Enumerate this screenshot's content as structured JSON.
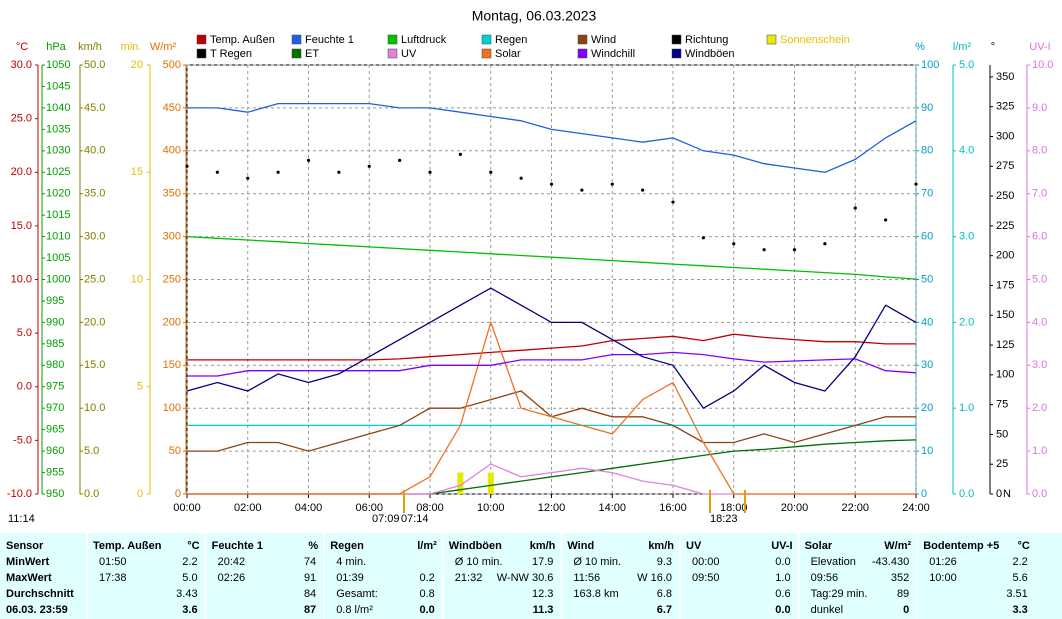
{
  "chart_data": {
    "type": "line",
    "title": "Montag, 06.03.2023",
    "x": [
      0,
      1,
      2,
      3,
      4,
      5,
      6,
      7,
      8,
      9,
      10,
      11,
      12,
      13,
      14,
      15,
      16,
      17,
      18,
      19,
      20,
      21,
      22,
      23,
      24
    ],
    "xlim": [
      0,
      24
    ],
    "xticks": [
      {
        "value": 0,
        "label": "00:00"
      },
      {
        "value": 2,
        "label": "02:00"
      },
      {
        "value": 4,
        "label": "04:00"
      },
      {
        "value": 6,
        "label": "06:00"
      },
      {
        "value": 8,
        "label": "08:00"
      },
      {
        "value": 10,
        "label": "10:00"
      },
      {
        "value": 12,
        "label": "12:00"
      },
      {
        "value": 14,
        "label": "14:00"
      },
      {
        "value": 16,
        "label": "16:00"
      },
      {
        "value": 18,
        "label": "18:00"
      },
      {
        "value": 20,
        "label": "20:00"
      },
      {
        "value": 22,
        "label": "22:00"
      },
      {
        "value": 24,
        "label": "24:00"
      }
    ],
    "grid": true,
    "axes": [
      {
        "unit": "°C",
        "color": "#c00000",
        "lim": [
          -10,
          30
        ],
        "ticks": [
          {
            "value": -10,
            "label": "-10.0"
          },
          {
            "value": -5,
            "label": "-5.0"
          },
          {
            "value": 0,
            "label": "0.0"
          },
          {
            "value": 5,
            "label": "5.0"
          },
          {
            "value": 10,
            "label": "10.0"
          },
          {
            "value": 15,
            "label": "15.0"
          },
          {
            "value": 20,
            "label": "20.0"
          },
          {
            "value": 25,
            "label": "25.0"
          },
          {
            "value": 30,
            "label": "30.0"
          }
        ]
      },
      {
        "unit": "hPa",
        "color": "#00a000",
        "lim": [
          950,
          1050
        ],
        "ticks": [
          950,
          955,
          960,
          965,
          970,
          975,
          980,
          985,
          990,
          995,
          1000,
          1005,
          1010,
          1015,
          1020,
          1025,
          1030,
          1035,
          1040,
          1045,
          1050
        ]
      },
      {
        "unit": "km/h",
        "color": "#808000",
        "lim": [
          0,
          50
        ],
        "ticks": [
          {
            "value": 0,
            "label": "0.0"
          },
          {
            "value": 5,
            "label": "5.0"
          },
          {
            "value": 10,
            "label": "10.0"
          },
          {
            "value": 15,
            "label": "15.0"
          },
          {
            "value": 20,
            "label": "20.0"
          },
          {
            "value": 25,
            "label": "25.0"
          },
          {
            "value": 30,
            "label": "30.0"
          },
          {
            "value": 35,
            "label": "35.0"
          },
          {
            "value": 40,
            "label": "40.0"
          },
          {
            "value": 45,
            "label": "45.0"
          },
          {
            "value": 50,
            "label": "50.0"
          }
        ]
      },
      {
        "unit": "min.",
        "color": "#e0c000",
        "lim": [
          0,
          20
        ],
        "ticks": [
          0,
          5,
          10,
          15,
          20
        ]
      },
      {
        "unit": "W/m²",
        "color": "#e07000",
        "lim": [
          0,
          500
        ],
        "ticks": [
          0,
          50,
          100,
          150,
          200,
          250,
          300,
          350,
          400,
          450,
          500
        ]
      },
      {
        "unit": "%",
        "color": "#00a0c0",
        "lim": [
          0,
          100
        ],
        "ticks": [
          0,
          10,
          20,
          30,
          40,
          50,
          60,
          70,
          80,
          90,
          100
        ]
      },
      {
        "unit": "l/m²",
        "color": "#00c0c0",
        "lim": [
          0,
          5
        ],
        "ticks": [
          {
            "value": 0,
            "label": "0.0"
          },
          {
            "value": 1,
            "label": "1.0"
          },
          {
            "value": 2,
            "label": "2.0"
          },
          {
            "value": 3,
            "label": "3.0"
          },
          {
            "value": 4,
            "label": "4.0"
          },
          {
            "value": 5,
            "label": "5.0"
          }
        ]
      },
      {
        "unit": "°",
        "color": "#000000",
        "lim": [
          0,
          360
        ],
        "ticks": [
          0,
          25,
          50,
          75,
          100,
          125,
          150,
          175,
          200,
          225,
          250,
          275,
          300,
          325,
          350
        ]
      },
      {
        "unit": "UV-I",
        "color": "#e070e0",
        "lim": [
          0,
          10
        ],
        "ticks": [
          {
            "value": 0,
            "label": "0.0"
          },
          {
            "value": 1,
            "label": "1.0"
          },
          {
            "value": 2,
            "label": "2.0"
          },
          {
            "value": 3,
            "label": "3.0"
          },
          {
            "value": 4,
            "label": "4.0"
          },
          {
            "value": 5,
            "label": "5.0"
          },
          {
            "value": 6,
            "label": "6.0"
          },
          {
            "value": 7,
            "label": "7.0"
          },
          {
            "value": 8,
            "label": "8.0"
          },
          {
            "value": 9,
            "label": "9.0"
          },
          {
            "value": 10,
            "label": "10.0"
          }
        ]
      }
    ],
    "series": [
      {
        "name": "Temp. Außen",
        "color": "#c00000",
        "axis": 0,
        "mode": "line",
        "values": [
          2.5,
          2.5,
          2.5,
          2.5,
          2.5,
          2.5,
          2.5,
          2.6,
          2.8,
          3.0,
          3.2,
          3.4,
          3.6,
          3.8,
          4.3,
          4.5,
          4.7,
          4.3,
          4.9,
          4.6,
          4.4,
          4.2,
          4.2,
          4.0,
          4.0
        ]
      },
      {
        "name": "Feuchte 1",
        "color": "#2060e0",
        "axis": 5,
        "mode": "line",
        "values": [
          90,
          90,
          89,
          91,
          91,
          91,
          91,
          90,
          90,
          89,
          88,
          87,
          85,
          84,
          83,
          82,
          83,
          80,
          79,
          77,
          76,
          75,
          78,
          83,
          87
        ]
      },
      {
        "name": "Luftdruck",
        "color": "#00c000",
        "axis": 1,
        "mode": "line",
        "values": [
          1010,
          1009.6,
          1009.2,
          1008.8,
          1008.4,
          1008,
          1007.6,
          1007.2,
          1006.8,
          1006.4,
          1006,
          1005.6,
          1005.2,
          1004.8,
          1004.4,
          1004,
          1003.6,
          1003.2,
          1002.8,
          1002.4,
          1002,
          1001.6,
          1001.2,
          1000.6,
          1000.1
        ]
      },
      {
        "name": "Regen",
        "color": "#00d0d0",
        "axis": 6,
        "mode": "line",
        "values": [
          0.8,
          0.8,
          0.8,
          0.8,
          0.8,
          0.8,
          0.8,
          0.8,
          0.8,
          0.8,
          0.8,
          0.8,
          0.8,
          0.8,
          0.8,
          0.8,
          0.8,
          0.8,
          0.8,
          0.8,
          0.8,
          0.8,
          0.8,
          0.8,
          0.8
        ]
      },
      {
        "name": "Wind",
        "color": "#8b4513",
        "axis": 2,
        "mode": "line",
        "values": [
          5,
          5,
          6,
          6,
          5,
          6,
          7,
          8,
          10,
          10,
          11,
          12,
          9,
          10,
          9,
          9,
          8,
          6,
          6,
          7,
          6,
          7,
          8,
          9,
          9
        ]
      },
      {
        "name": "Richtung",
        "color": "#000000",
        "axis": 7,
        "mode": "points",
        "values": [
          275,
          270,
          265,
          270,
          280,
          270,
          275,
          280,
          270,
          285,
          270,
          265,
          260,
          255,
          260,
          255,
          245,
          215,
          210,
          205,
          205,
          210,
          240,
          230,
          260
        ]
      },
      {
        "name": "Sonnenschein",
        "color": "#e8e800",
        "axis": 3,
        "mode": "bar",
        "values": [
          0,
          0,
          0,
          0,
          0,
          0,
          0,
          0,
          0,
          1,
          1,
          0,
          0,
          0,
          0,
          0,
          0,
          0,
          0,
          0,
          0,
          0,
          0,
          0,
          0
        ]
      },
      {
        "name": "T Regen",
        "color": "#000000",
        "axis": 6,
        "mode": "line"
      },
      {
        "name": "ET",
        "color": "#007000",
        "axis": 6,
        "mode": "line",
        "values": [
          0,
          0,
          0,
          0,
          0,
          0,
          0,
          0,
          0,
          0.05,
          0.1,
          0.15,
          0.2,
          0.25,
          0.3,
          0.35,
          0.4,
          0.45,
          0.5,
          0.52,
          0.55,
          0.58,
          0.6,
          0.62,
          0.63
        ]
      },
      {
        "name": "UV",
        "color": "#e080e0",
        "axis": 8,
        "mode": "line",
        "values": [
          0,
          0,
          0,
          0,
          0,
          0,
          0,
          0,
          0,
          0.2,
          0.7,
          0.4,
          0.5,
          0.6,
          0.5,
          0.3,
          0.2,
          0,
          0,
          0,
          0,
          0,
          0,
          0,
          0
        ]
      },
      {
        "name": "Solar",
        "color": "#f07020",
        "axis": 4,
        "mode": "line",
        "values": [
          0,
          0,
          0,
          0,
          0,
          0,
          0,
          0,
          20,
          80,
          200,
          100,
          90,
          80,
          70,
          110,
          130,
          60,
          0,
          0,
          0,
          0,
          0,
          0,
          0
        ]
      },
      {
        "name": "Windchill",
        "color": "#8000ff",
        "axis": 0,
        "mode": "line",
        "values": [
          1,
          1,
          1.5,
          1.5,
          1.5,
          1.5,
          1.5,
          1.5,
          2,
          2,
          2,
          2.5,
          2.5,
          2.5,
          3,
          3,
          3.2,
          3,
          2.6,
          2.3,
          2.4,
          2.5,
          2.6,
          1.5,
          1.3
        ]
      },
      {
        "name": "Windböen",
        "color": "#000080",
        "axis": 2,
        "mode": "line",
        "values": [
          12,
          13,
          12,
          14,
          13,
          14,
          16,
          18,
          20,
          22,
          24,
          22,
          20,
          20,
          18,
          16,
          15,
          10,
          12,
          15,
          13,
          12,
          16,
          22,
          20
        ]
      }
    ],
    "annotations": [
      "11:14",
      "07:09",
      "07:14",
      "18:23",
      "N"
    ]
  },
  "table": {
    "sensor_header": "Sensor",
    "row_labels": [
      "MinWert",
      "MaxWert",
      "Durchschnitt",
      "06.03. 23:59"
    ],
    "columns": [
      {
        "name": "Temp. Außen",
        "unit": "°C",
        "rows": [
          [
            "01:50",
            "2.2"
          ],
          [
            "17:38",
            "5.0"
          ],
          [
            null,
            "3.43"
          ],
          [
            null,
            "3.6"
          ]
        ]
      },
      {
        "name": "Feuchte 1",
        "unit": "%",
        "rows": [
          [
            "20:42",
            "74"
          ],
          [
            "02:26",
            "91"
          ],
          [
            null,
            "84"
          ],
          [
            null,
            "87"
          ]
        ]
      },
      {
        "name": "Regen",
        "unit": "l/m²",
        "rows": [
          [
            "4 min.",
            null
          ],
          [
            "01:39",
            "0.2"
          ],
          [
            "Gesamt:",
            "0.8"
          ],
          [
            "0.8 l/m²",
            "0.0"
          ]
        ]
      },
      {
        "name": "Windböen",
        "unit": "km/h",
        "rows": [
          [
            "Ø 10 min.",
            "17.9"
          ],
          [
            "21:32",
            "W-NW 30.6"
          ],
          [
            null,
            "12.3"
          ],
          [
            null,
            "11.3"
          ]
        ]
      },
      {
        "name": "Wind",
        "unit": "km/h",
        "rows": [
          [
            "Ø 10 min.",
            "9.3"
          ],
          [
            "11:56",
            "W 16.0"
          ],
          [
            "163.8 km",
            "6.8"
          ],
          [
            null,
            "6.7"
          ]
        ]
      },
      {
        "name": "UV",
        "unit": "UV-I",
        "rows": [
          [
            "00:00",
            "0.0"
          ],
          [
            "09:50",
            "1.0"
          ],
          [
            null,
            "0.6"
          ],
          [
            null,
            "0.0"
          ]
        ]
      },
      {
        "name": "Solar",
        "unit": "W/m²",
        "rows": [
          [
            "Elevation",
            "-43.430"
          ],
          [
            "09:56",
            "352"
          ],
          [
            "Tag:29 min.",
            "89"
          ],
          [
            "dunkel",
            "0"
          ]
        ]
      },
      {
        "name": "Bodentemp +5",
        "unit": "°C",
        "rows": [
          [
            "01:26",
            "2.2"
          ],
          [
            "10:00",
            "5.6"
          ],
          [
            null,
            "3.51"
          ],
          [
            null,
            "3.3"
          ]
        ]
      }
    ]
  }
}
